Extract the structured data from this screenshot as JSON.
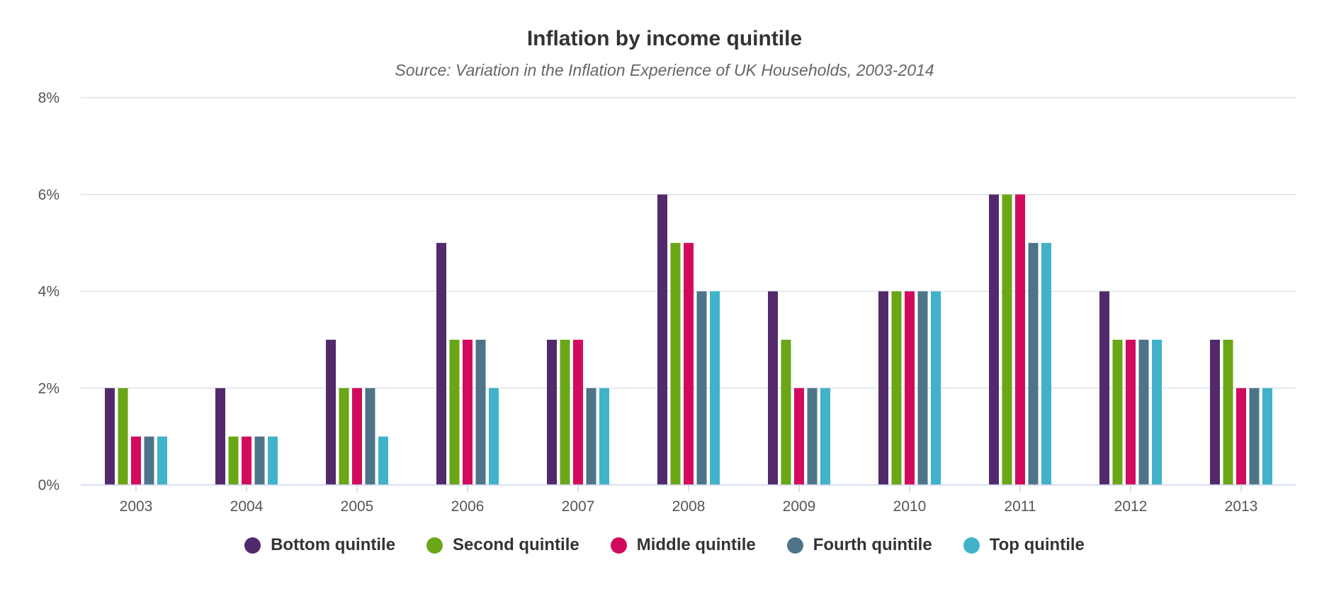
{
  "chart_data": {
    "type": "bar",
    "title": "Inflation by income quintile",
    "subtitle": "Source: Variation in the Inflation Experience of UK Households, 2003-2014",
    "xlabel": "",
    "ylabel": "",
    "categories": [
      "2003",
      "2004",
      "2005",
      "2006",
      "2007",
      "2008",
      "2009",
      "2010",
      "2011",
      "2012",
      "2013"
    ],
    "ylim": [
      0,
      8
    ],
    "yticks": [
      0,
      2,
      4,
      6,
      8
    ],
    "ytick_labels": [
      "0%",
      "2%",
      "4%",
      "6%",
      "8%"
    ],
    "grid": true,
    "legend_position": "bottom-center",
    "series": [
      {
        "name": "Bottom quintile",
        "color": "#522a6b",
        "values": [
          2,
          2,
          3,
          5,
          3,
          6,
          4,
          4,
          6,
          4,
          3
        ]
      },
      {
        "name": "Second quintile",
        "color": "#6aa616",
        "values": [
          2,
          1,
          2,
          3,
          3,
          5,
          3,
          4,
          6,
          3,
          3
        ]
      },
      {
        "name": "Middle quintile",
        "color": "#d20a5d",
        "values": [
          1,
          1,
          2,
          3,
          3,
          5,
          2,
          4,
          6,
          3,
          2
        ]
      },
      {
        "name": "Fourth quintile",
        "color": "#4e7489",
        "values": [
          1,
          1,
          2,
          3,
          2,
          4,
          2,
          4,
          5,
          3,
          2
        ]
      },
      {
        "name": "Top quintile",
        "color": "#40b2c9",
        "values": [
          1,
          1,
          1,
          2,
          2,
          4,
          2,
          4,
          5,
          3,
          2
        ]
      }
    ]
  }
}
